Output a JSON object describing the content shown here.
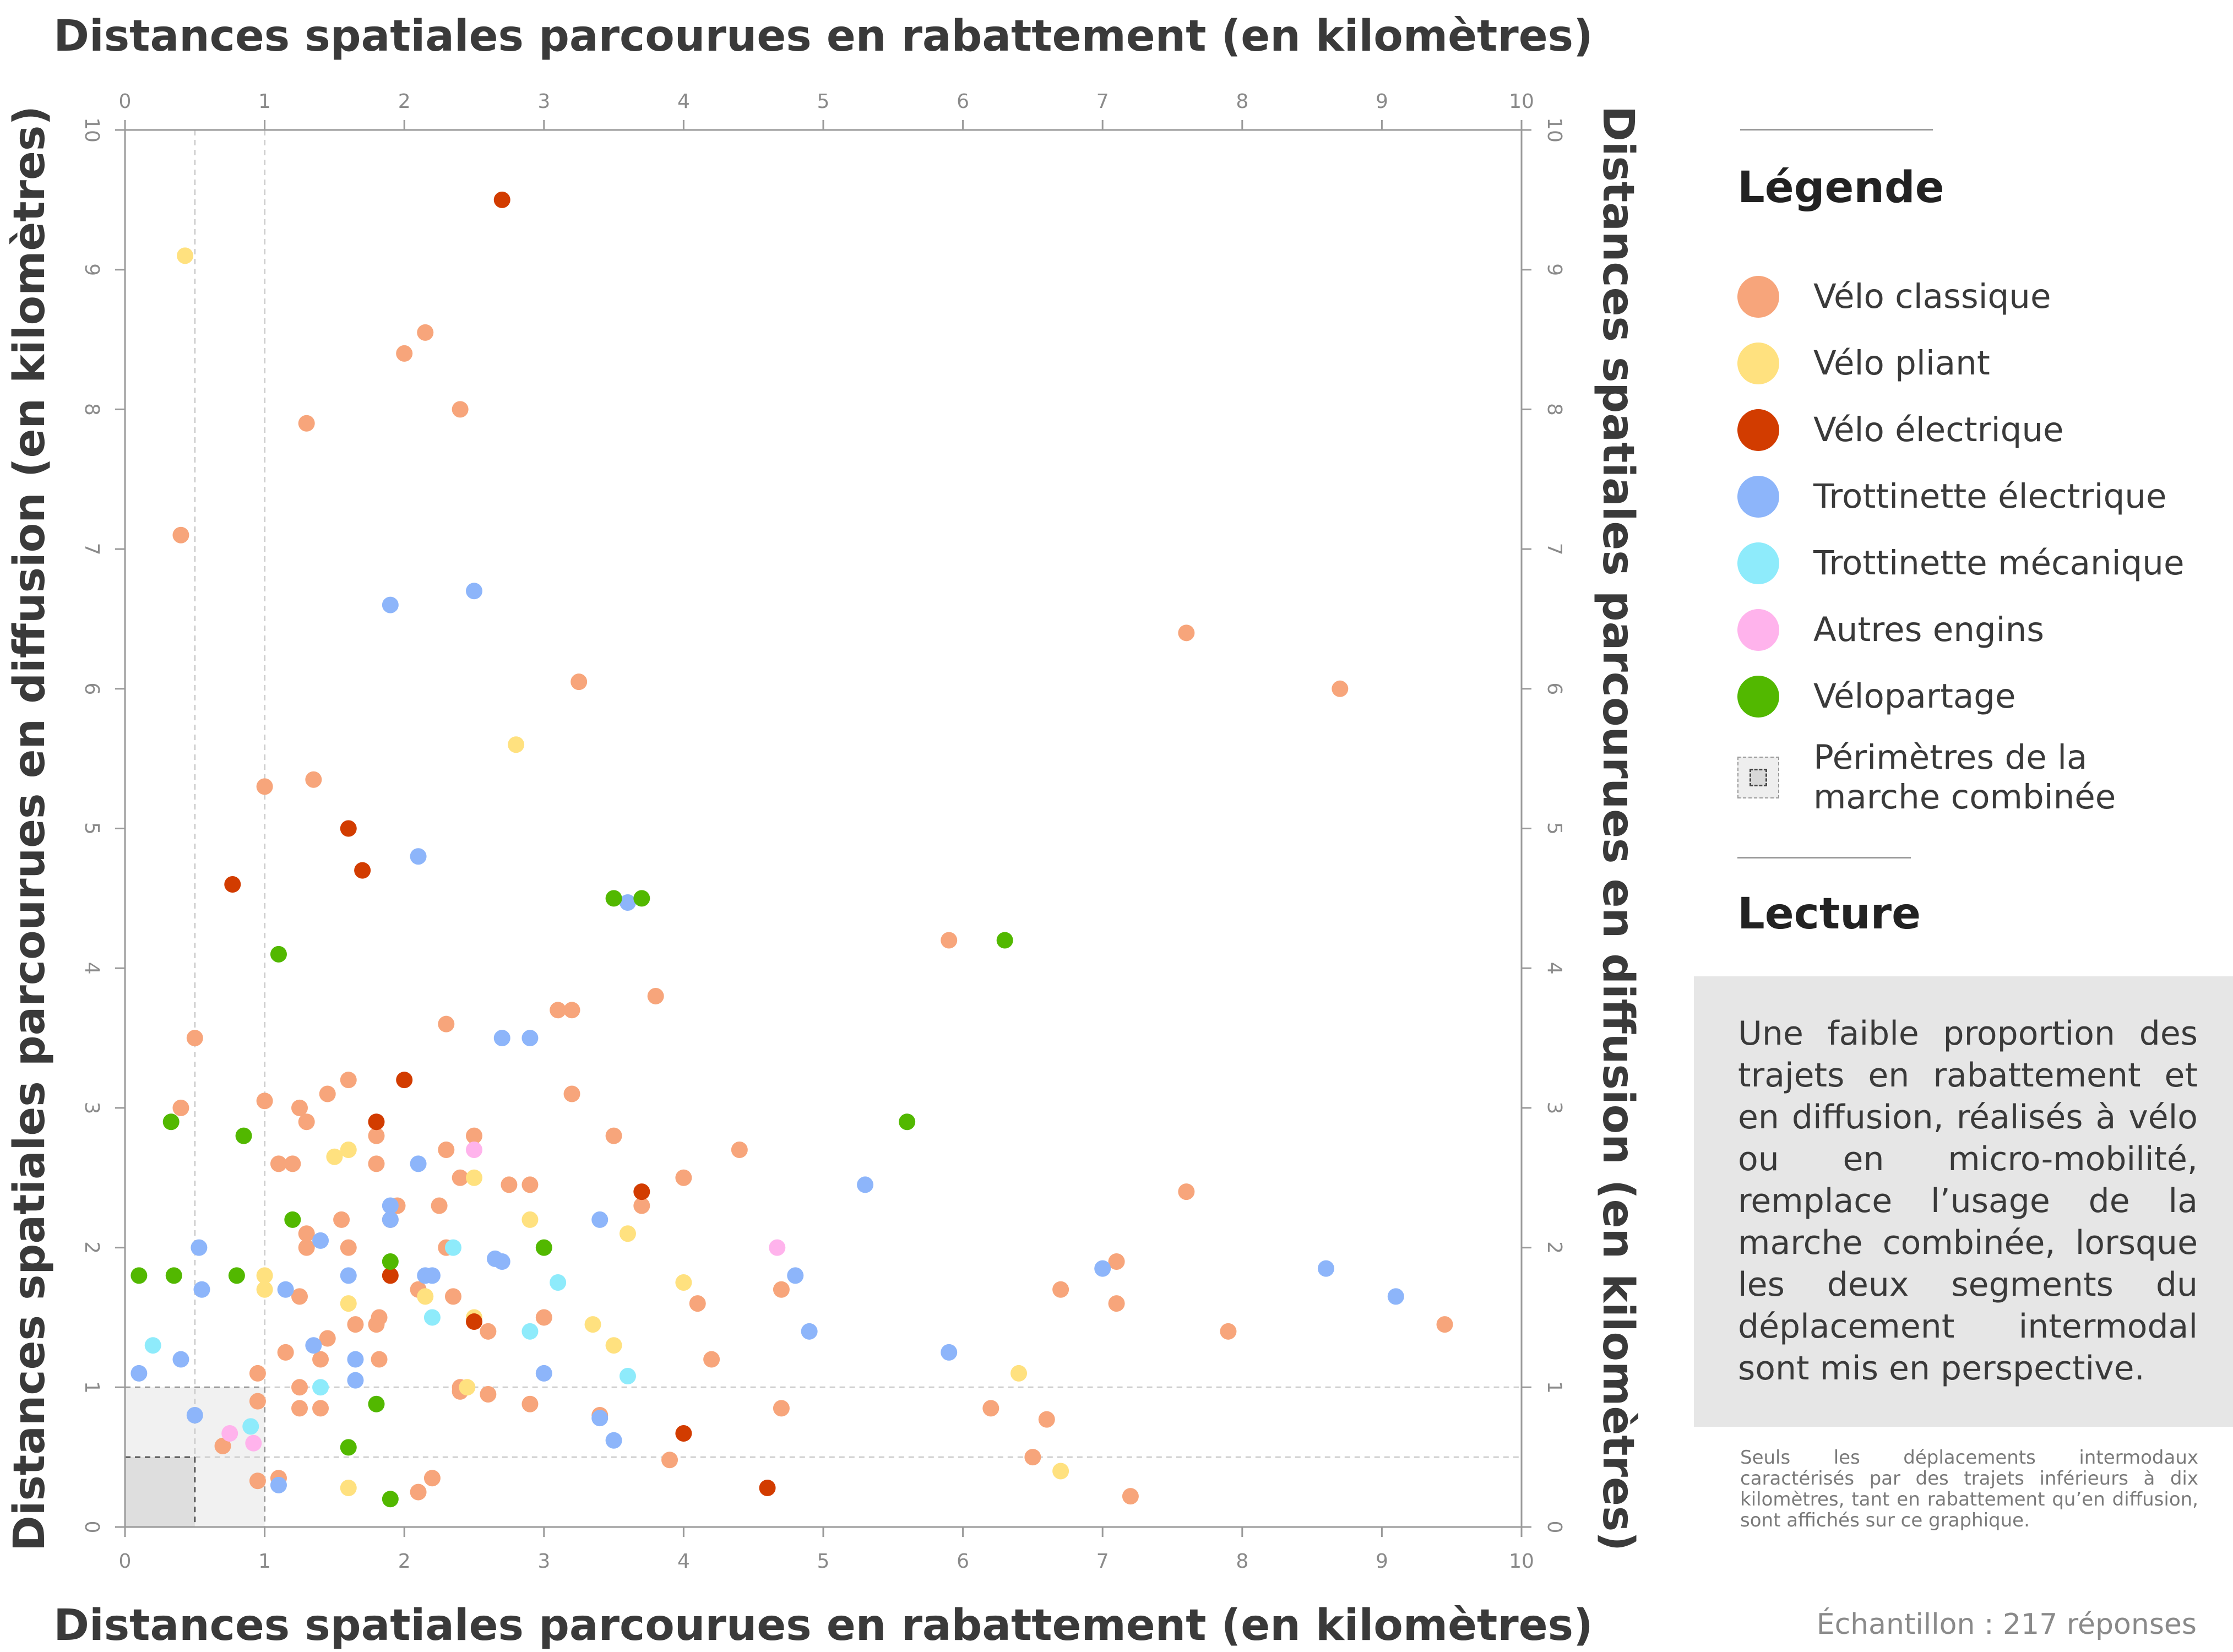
{
  "chart_data": {
    "type": "scatter",
    "xlabel": "Distances spatiales parcourues en rabattement (en kilomètres)",
    "ylabel": "Distances spatiales parcourues en diffusion (en kilomètres)",
    "xlim": [
      0,
      10
    ],
    "ylim": [
      0,
      10
    ],
    "x_ticks": [
      "0",
      "1",
      "2",
      "3",
      "4",
      "5",
      "6",
      "7",
      "8",
      "9",
      "10"
    ],
    "y_ticks": [
      "0",
      "1",
      "2",
      "3",
      "4",
      "5",
      "6",
      "7",
      "8",
      "9",
      "10"
    ],
    "grid": false,
    "legend_position": "right",
    "perimeters": [
      {
        "x_max": 0.5,
        "y_max": 0.5,
        "color": "#dedede"
      },
      {
        "x_max": 1,
        "y_max": 1,
        "color": "#f1f1f1"
      }
    ],
    "series": [
      {
        "name": "Vélo classique",
        "color": "#F7A57B",
        "points": [
          [
            0.4,
            7.1
          ],
          [
            1.0,
            5.3
          ],
          [
            1.35,
            5.35
          ],
          [
            1.3,
            7.9
          ],
          [
            2.0,
            8.4
          ],
          [
            2.15,
            8.55
          ],
          [
            2.4,
            8.0
          ],
          [
            3.25,
            6.05
          ],
          [
            0.5,
            3.5
          ],
          [
            0.4,
            3.0
          ],
          [
            1.0,
            3.05
          ],
          [
            1.1,
            2.6
          ],
          [
            1.2,
            2.6
          ],
          [
            1.25,
            3.0
          ],
          [
            1.3,
            2.9
          ],
          [
            1.45,
            3.1
          ],
          [
            1.6,
            3.2
          ],
          [
            1.8,
            2.8
          ],
          [
            1.8,
            2.6
          ],
          [
            2.3,
            3.6
          ],
          [
            2.3,
            2.7
          ],
          [
            2.5,
            2.8
          ],
          [
            2.4,
            2.5
          ],
          [
            2.75,
            2.45
          ],
          [
            2.9,
            2.45
          ],
          [
            3.1,
            3.7
          ],
          [
            3.2,
            3.7
          ],
          [
            3.2,
            3.1
          ],
          [
            3.8,
            3.8
          ],
          [
            3.5,
            2.8
          ],
          [
            4.0,
            2.5
          ],
          [
            4.4,
            2.7
          ],
          [
            3.7,
            2.3
          ],
          [
            1.3,
            2.1
          ],
          [
            1.3,
            2.0
          ],
          [
            1.55,
            2.2
          ],
          [
            1.6,
            2.0
          ],
          [
            1.9,
            2.2
          ],
          [
            1.95,
            2.3
          ],
          [
            2.25,
            2.3
          ],
          [
            2.3,
            2.0
          ],
          [
            2.1,
            1.7
          ],
          [
            2.35,
            1.65
          ],
          [
            1.25,
            1.65
          ],
          [
            1.15,
            1.25
          ],
          [
            0.95,
            1.1
          ],
          [
            0.95,
            0.9
          ],
          [
            1.25,
            1.0
          ],
          [
            1.4,
            1.2
          ],
          [
            1.45,
            1.35
          ],
          [
            1.65,
            1.45
          ],
          [
            1.8,
            1.45
          ],
          [
            1.82,
            1.5
          ],
          [
            1.82,
            1.2
          ],
          [
            1.25,
            0.85
          ],
          [
            1.4,
            0.85
          ],
          [
            2.4,
            1.0
          ],
          [
            2.4,
            0.97
          ],
          [
            2.6,
            0.95
          ],
          [
            2.6,
            1.4
          ],
          [
            2.9,
            0.88
          ],
          [
            3.0,
            1.5
          ],
          [
            3.4,
            0.8
          ],
          [
            3.9,
            0.48
          ],
          [
            4.1,
            1.6
          ],
          [
            4.2,
            1.2
          ],
          [
            4.7,
            1.7
          ],
          [
            4.7,
            0.85
          ],
          [
            5.9,
            4.2
          ],
          [
            6.2,
            0.85
          ],
          [
            6.5,
            0.5
          ],
          [
            6.6,
            0.77
          ],
          [
            6.7,
            1.7
          ],
          [
            7.1,
            1.6
          ],
          [
            7.1,
            1.9
          ],
          [
            7.2,
            0.22
          ],
          [
            7.6,
            2.4
          ],
          [
            7.6,
            6.4
          ],
          [
            7.9,
            1.4
          ],
          [
            8.7,
            6.0
          ],
          [
            9.45,
            1.45
          ],
          [
            0.7,
            0.58
          ],
          [
            0.95,
            0.33
          ],
          [
            1.1,
            0.35
          ],
          [
            2.1,
            0.25
          ],
          [
            2.2,
            0.35
          ]
        ]
      },
      {
        "name": "Vélo pliant",
        "color": "#FFE17F",
        "points": [
          [
            0.43,
            9.1
          ],
          [
            2.8,
            5.6
          ],
          [
            1.5,
            2.65
          ],
          [
            1.6,
            2.7
          ],
          [
            2.5,
            2.5
          ],
          [
            2.9,
            2.2
          ],
          [
            3.6,
            2.1
          ],
          [
            4.0,
            1.75
          ],
          [
            1.0,
            1.7
          ],
          [
            1.0,
            1.8
          ],
          [
            1.6,
            1.6
          ],
          [
            2.15,
            1.65
          ],
          [
            2.45,
            1.0
          ],
          [
            2.5,
            1.5
          ],
          [
            3.35,
            1.45
          ],
          [
            3.5,
            1.3
          ],
          [
            6.4,
            1.1
          ],
          [
            6.7,
            0.4
          ],
          [
            1.6,
            0.28
          ]
        ]
      },
      {
        "name": "Vélo électrique",
        "color": "#D23C00",
        "points": [
          [
            2.7,
            9.5
          ],
          [
            0.77,
            4.6
          ],
          [
            1.6,
            5.0
          ],
          [
            1.7,
            4.7
          ],
          [
            1.8,
            2.9
          ],
          [
            2.0,
            3.2
          ],
          [
            1.9,
            1.8
          ],
          [
            2.5,
            1.47
          ],
          [
            3.7,
            2.4
          ],
          [
            4.0,
            0.67
          ],
          [
            4.6,
            0.28
          ]
        ]
      },
      {
        "name": "Trottinette électrique",
        "color": "#8DB5FA",
        "points": [
          [
            1.9,
            6.6
          ],
          [
            2.5,
            6.7
          ],
          [
            2.1,
            4.8
          ],
          [
            3.6,
            4.47
          ],
          [
            2.7,
            3.5
          ],
          [
            2.9,
            3.5
          ],
          [
            2.1,
            2.6
          ],
          [
            1.9,
            2.3
          ],
          [
            1.9,
            2.2
          ],
          [
            3.4,
            2.2
          ],
          [
            2.65,
            1.92
          ],
          [
            2.7,
            1.9
          ],
          [
            2.15,
            1.8
          ],
          [
            2.2,
            1.8
          ],
          [
            1.6,
            1.8
          ],
          [
            1.4,
            2.05
          ],
          [
            1.15,
            1.7
          ],
          [
            0.55,
            1.7
          ],
          [
            0.53,
            2.0
          ],
          [
            4.8,
            1.8
          ],
          [
            5.3,
            2.45
          ],
          [
            4.9,
            1.4
          ],
          [
            5.9,
            1.25
          ],
          [
            7.0,
            1.85
          ],
          [
            8.6,
            1.85
          ],
          [
            9.1,
            1.65
          ],
          [
            0.1,
            1.1
          ],
          [
            0.4,
            1.2
          ],
          [
            1.35,
            1.3
          ],
          [
            1.65,
            1.2
          ],
          [
            1.65,
            1.05
          ],
          [
            3.0,
            1.1
          ],
          [
            3.4,
            0.78
          ],
          [
            3.5,
            0.62
          ],
          [
            0.5,
            0.8
          ],
          [
            1.1,
            0.3
          ]
        ]
      },
      {
        "name": "Trottinette mécanique",
        "color": "#8EEBFB",
        "points": [
          [
            0.2,
            1.3
          ],
          [
            2.35,
            2.0
          ],
          [
            2.2,
            1.5
          ],
          [
            2.9,
            1.4
          ],
          [
            3.1,
            1.75
          ],
          [
            1.4,
            1.0
          ],
          [
            3.6,
            1.08
          ],
          [
            0.9,
            0.72
          ]
        ]
      },
      {
        "name": "Autres engins",
        "color": "#FFB3EC",
        "points": [
          [
            2.5,
            2.7
          ],
          [
            4.67,
            2.0
          ],
          [
            0.75,
            0.67
          ],
          [
            0.92,
            0.6
          ]
        ]
      },
      {
        "name": "Vélopartage",
        "color": "#52B800",
        "points": [
          [
            0.33,
            2.9
          ],
          [
            0.85,
            2.8
          ],
          [
            1.1,
            4.1
          ],
          [
            3.5,
            4.5
          ],
          [
            3.7,
            4.5
          ],
          [
            5.6,
            2.9
          ],
          [
            6.3,
            4.2
          ],
          [
            1.2,
            2.2
          ],
          [
            0.1,
            1.8
          ],
          [
            0.35,
            1.8
          ],
          [
            0.8,
            1.8
          ],
          [
            1.9,
            1.9
          ],
          [
            3.0,
            2.0
          ],
          [
            1.8,
            0.88
          ],
          [
            1.6,
            0.57
          ],
          [
            1.9,
            0.2
          ]
        ]
      }
    ]
  },
  "legend": {
    "title": "Légende",
    "perimeter_label": "Périmètres de la marche combinée"
  },
  "reading": {
    "title": "Lecture",
    "text": "Une faible proportion des trajets en rabattement et en diffusion, réalisés à vélo ou en micro-mobilité, remplace l’usage de la marche combinée, lorsque les deux segments du déplacement intermodal sont mis en perspective."
  },
  "footnote": "Seuls les déplacements intermodaux caractérisés par des trajets inférieurs à dix kilomètres, tant en rabattement qu’en diffusion, sont affichés sur ce graphique.",
  "sample": "Échantillon : 217 réponses"
}
